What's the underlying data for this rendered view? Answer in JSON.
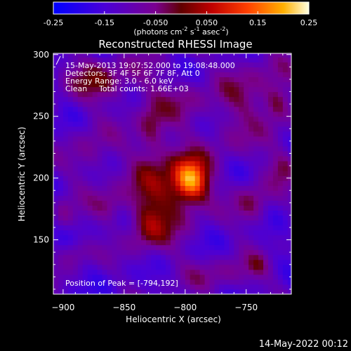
{
  "chart_data": {
    "type": "heatmap",
    "title": "Reconstructed RHESSI Image",
    "xlabel": "Heliocentric X (arcsec)",
    "ylabel": "Heliocentric Y (arcsec)",
    "xlim": [
      -908,
      -713
    ],
    "ylim": [
      106,
      301
    ],
    "x_ticks": [
      -900,
      -850,
      -800,
      -750
    ],
    "y_ticks": [
      150,
      200,
      250,
      300
    ],
    "colorbar": {
      "range": [
        -0.25,
        0.25
      ],
      "ticks": [
        "-0.25",
        "-0.15",
        "-0.050",
        "0.050",
        "0.15",
        "0.25"
      ],
      "unit_label": "(photons cm",
      "unit_sup1": "-2",
      "unit_mid": " s",
      "unit_sup2": "-1",
      "unit_end": " asec",
      "unit_sup3": "-2",
      "unit_close": ")"
    },
    "annotations": {
      "time_range": "15-May-2013 19:07:52.000 to 19:08:48.000",
      "detectors": "Detectors: 3F 4F 5F 6F 7F 8F, Att 0",
      "energy": "Energy Range: 3.0 - 6.0 keV",
      "method": "Clean",
      "counts": "Total counts: 1.66E+03",
      "peak": "Position of Peak = [-794,192]"
    },
    "peak": [
      -794,
      192
    ],
    "sources": [
      {
        "x": -795,
        "y": 198,
        "sx": 10,
        "sy": 12,
        "amp": 0.28
      },
      {
        "x": -818,
        "y": 192,
        "sx": 20,
        "sy": 30,
        "amp": 0.13
      },
      {
        "x": -832,
        "y": 160,
        "sx": 10,
        "sy": 14,
        "amp": 0.09
      },
      {
        "x": -828,
        "y": 244,
        "sx": 8,
        "sy": 18,
        "amp": 0.09
      },
      {
        "x": -868,
        "y": 280,
        "sx": 26,
        "sy": 14,
        "amp": 0.1
      },
      {
        "x": -878,
        "y": 218,
        "sx": 12,
        "sy": 20,
        "amp": 0.07
      },
      {
        "x": -862,
        "y": 178,
        "sx": 9,
        "sy": 10,
        "amp": 0.08
      },
      {
        "x": -890,
        "y": 140,
        "sx": 9,
        "sy": 8,
        "amp": 0.08
      },
      {
        "x": -742,
        "y": 270,
        "sx": 24,
        "sy": 22,
        "amp": 0.08
      },
      {
        "x": -745,
        "y": 180,
        "sx": 10,
        "sy": 14,
        "amp": 0.1
      },
      {
        "x": -720,
        "y": 210,
        "sx": 9,
        "sy": 10,
        "amp": 0.1
      },
      {
        "x": -725,
        "y": 260,
        "sx": 7,
        "sy": 10,
        "amp": 0.09
      },
      {
        "x": -765,
        "y": 122,
        "sx": 24,
        "sy": 10,
        "amp": 0.07
      },
      {
        "x": -765,
        "y": 235,
        "sx": 14,
        "sy": 16,
        "amp": 0.05
      },
      {
        "x": -800,
        "y": 265,
        "sx": 14,
        "sy": 12,
        "amp": 0.06
      },
      {
        "x": -740,
        "y": 130,
        "sx": 6,
        "sy": 6,
        "amp": 0.05
      },
      {
        "x": -900,
        "y": 170,
        "sx": 6,
        "sy": 10,
        "amp": 0.06
      }
    ]
  },
  "footer": {
    "date": "14-May-2022 00:12"
  }
}
